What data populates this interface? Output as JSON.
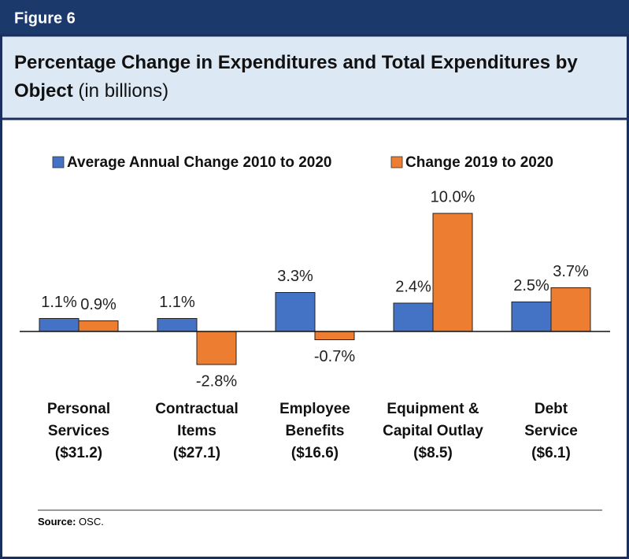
{
  "figure_label": "Figure 6",
  "chart_data": {
    "type": "bar",
    "title": "Percentage Change in Expenditures and Total Expenditures by Object",
    "subtitle": "(in billions)",
    "categories": [
      "Personal\nServices\n($31.2)",
      "Contractual\nItems\n($27.1)",
      "Employee\nBenefits\n($16.6)",
      "Equipment &\nCapital Outlay\n($8.5)",
      "Debt\nService\n($6.1)"
    ],
    "series": [
      {
        "name": "Average Annual Change 2010 to 2020",
        "color": "#4472c4",
        "values": [
          1.1,
          1.1,
          3.3,
          2.4,
          2.5
        ],
        "value_labels": [
          "1.1%",
          "1.1%",
          "3.3%",
          "2.4%",
          "2.5%"
        ]
      },
      {
        "name": "Change 2019 to 2020",
        "color": "#ed7d31",
        "values": [
          0.9,
          -2.8,
          -0.7,
          10.0,
          3.7
        ],
        "value_labels": [
          "0.9%",
          "-2.8%",
          "-0.7%",
          "10.0%",
          "3.7%"
        ]
      }
    ],
    "ylim": [
      -4,
      12
    ],
    "legend": "top"
  },
  "source": {
    "label": "Source:",
    "text": "OSC."
  }
}
